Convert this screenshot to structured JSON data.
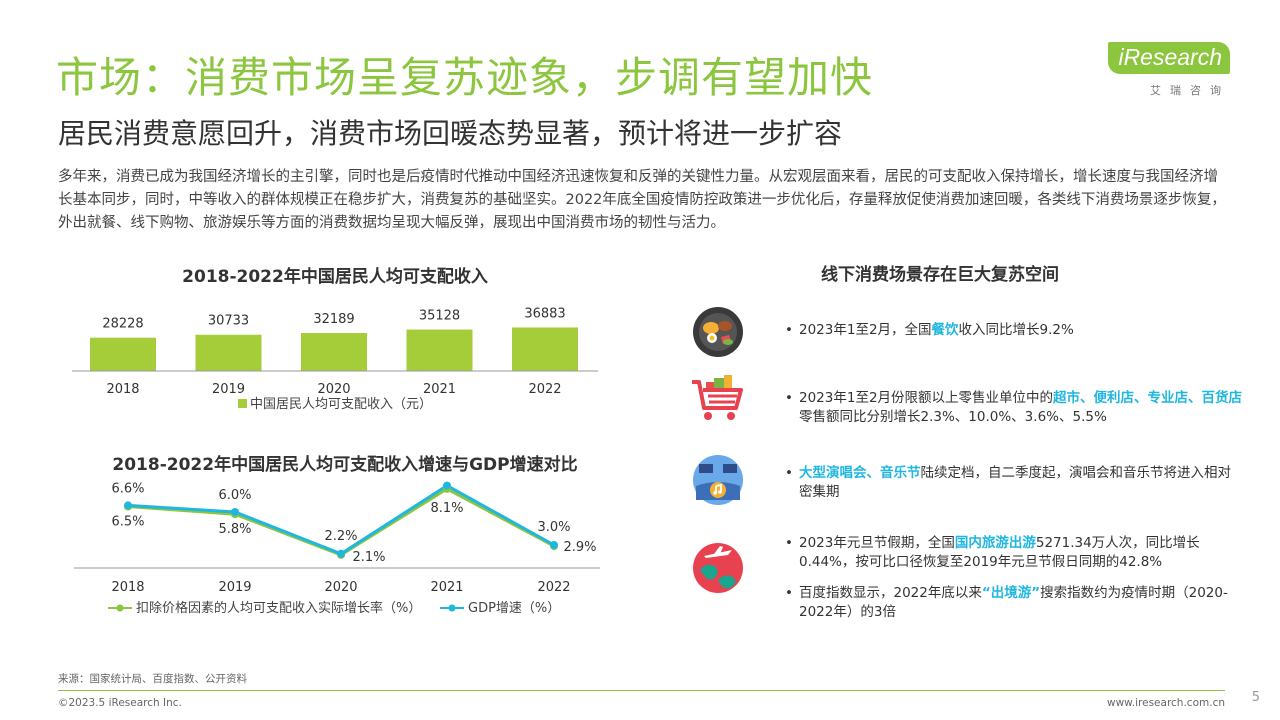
{
  "header": {
    "title": "市场：消费市场呈复苏迹象，步调有望加快",
    "subtitle": "居民消费意愿回升，消费市场回暖态势显著，预计将进一步扩容",
    "intro": "多年来，消费已成为我国经济增长的主引擎，同时也是后疫情时代推动中国经济迅速恢复和反弹的关键性力量。从宏观层面来看，居民的可支配收入保持增长，增长速度与我国经济增长基本同步，同时，中等收入的群体规模正在稳步扩大，消费复苏的基础坚实。2022年底全国疫情防控政策进一步优化后，存量释放促使消费加速回暖，各类线下消费场景逐步恢复，外出就餐、线下购物、旅游娱乐等方面的消费数据均呈现大幅反弹，展现出中国消费市场的韧性与活力。"
  },
  "brand": {
    "logo": "iResearch",
    "sub": "艾瑞咨询"
  },
  "colors": {
    "green": "#8cc63f",
    "cyan": "#1fb6e0",
    "bar": "#a4cd39"
  },
  "chart_data": [
    {
      "type": "bar",
      "title": "2018-2022年中国居民人均可支配收入",
      "categories": [
        "2018",
        "2019",
        "2020",
        "2021",
        "2022"
      ],
      "series": [
        {
          "name": "中国居民人均可支配收入（元）",
          "values": [
            28228,
            30733,
            32189,
            35128,
            36883
          ]
        }
      ]
    },
    {
      "type": "line",
      "title": "2018-2022年中国居民人均可支配收入增速与GDP增速对比",
      "categories": [
        "2018",
        "2019",
        "2020",
        "2021",
        "2022"
      ],
      "series": [
        {
          "name": "扣除价格因素的人均可支配收入实际增长率（%）",
          "values": [
            6.5,
            5.8,
            2.1,
            8.1,
            2.9
          ],
          "labels": [
            "6.5%",
            "5.8%",
            "2.1%",
            "8.1%",
            "2.9%"
          ]
        },
        {
          "name": "GDP增速（%）",
          "values": [
            6.6,
            6.0,
            2.2,
            8.4,
            3.0
          ],
          "labels": [
            "6.6%",
            "6.0%",
            "2.2%",
            "8.4%",
            "3.0%"
          ]
        }
      ],
      "ylim": [
        0,
        10
      ]
    }
  ],
  "right": {
    "title": "线下消费场景存在巨大复苏空间",
    "items": [
      {
        "icon": "food-plate-icon",
        "pre": "2023年1至2月，全国",
        "hl": "餐饮",
        "post": "收入同比增长9.2%"
      },
      {
        "icon": "shopping-cart-icon",
        "pre": "2023年1至2月份限额以上零售业单位中的",
        "hl": "超市、便利店、专业店、百货店",
        "post": "零售额同比分别增长2.3%、10.0%、3.6%、5.5%"
      },
      {
        "icon": "concert-music-icon",
        "pre": "",
        "hl": "大型演唱会、音乐节",
        "post": "陆续定档，自二季度起，演唱会和音乐节将进入相对密集期"
      },
      {
        "icon": "travel-globe-icon",
        "pre": "2023年元旦节假期，全国",
        "hl": "国内旅游出游",
        "post": "5271.34万人次，同比增长0.44%，按可比口径恢复至2019年元旦节假日同期的42.8%"
      },
      {
        "icon": "",
        "pre": "百度指数显示，2022年底以来",
        "hl": "“出境游”",
        "post": "搜索指数约为疫情时期（2020-2022年）的3倍"
      }
    ]
  },
  "footer": {
    "source": "来源：国家统计局、百度指数、公开资料",
    "copyright": "©2023.5 iResearch Inc.",
    "url": "www.iresearch.com.cn",
    "page": "5"
  }
}
